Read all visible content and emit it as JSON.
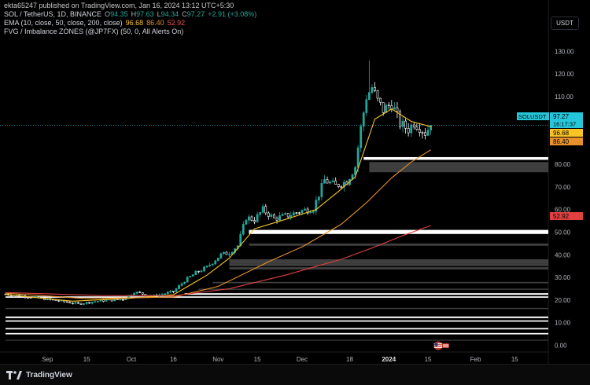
{
  "header": {
    "credit": "ekta65247 published on TradingView.com, Jan 16, 2024 13:12 UTC+5:30",
    "symbol": "SOL / TetherUS, 1D, BINANCE",
    "ohlc": {
      "o_label": "O",
      "o": "94.35",
      "h_label": "H",
      "h": "97.63",
      "l_label": "L",
      "l": "94.34",
      "c_label": "C",
      "c": "97.27",
      "change": "+2.91 (+3.08%)"
    },
    "ema_label": "EMA (10, close, 50, close, 200, close)",
    "ema_values": [
      "96.68",
      "86.40",
      "52.92"
    ],
    "fvg_label": "FVG / Imbalance ZONES (@JP7FX) (50, 0, All Alerts On)"
  },
  "currency_button": "USDT",
  "price_tags": {
    "symbol": "SOLUSDT",
    "last": "97.27",
    "countdown": "16:17:37",
    "ema10": "96.68",
    "ema50": "86.40",
    "ema200": "52.92"
  },
  "colors": {
    "up": "#26a69a",
    "down": "#ffffff",
    "ema10": "#f7c325",
    "ema50": "#e8912b",
    "ema200": "#e04040",
    "last_price": "#26c6da",
    "zone_white": "#ffffff",
    "zone_gray": "#5a5a5a"
  },
  "footer": {
    "brand": "TradingView",
    "logo_icon": "tradingview-logo-icon",
    "flag_icon": "us-flag-icon"
  },
  "chart_data": {
    "type": "candlestick",
    "title": "",
    "xlabel": "",
    "ylabel": "",
    "ylim": [
      -3,
      136
    ],
    "y_ticks": [
      "0.00",
      "10.00",
      "20.00",
      "30.00",
      "40.00",
      "50.00",
      "60.00",
      "70.00",
      "80.00",
      "90.00",
      "100.00",
      "110.00",
      "120.00",
      "130.00"
    ],
    "y_tick_values": [
      0,
      10,
      20,
      30,
      40,
      50,
      60,
      70,
      80,
      90,
      100,
      110,
      120,
      130
    ],
    "x_tick_labels": [
      {
        "label": "Sep",
        "date": "2023-09-01"
      },
      {
        "label": "15",
        "date": "2023-09-15"
      },
      {
        "label": "Oct",
        "date": "2023-10-01"
      },
      {
        "label": "16",
        "date": "2023-10-16"
      },
      {
        "label": "Nov",
        "date": "2023-11-01"
      },
      {
        "label": "15",
        "date": "2023-11-15"
      },
      {
        "label": "Dec",
        "date": "2023-12-01"
      },
      {
        "label": "18",
        "date": "2023-12-18"
      },
      {
        "label": "2024",
        "date": "2024-01-01"
      },
      {
        "label": "15",
        "date": "2024-01-15"
      },
      {
        "label": "Feb",
        "date": "2024-02-01"
      },
      {
        "label": "15",
        "date": "2024-02-15"
      }
    ],
    "x_range": [
      "2023-08-17",
      "2024-02-27"
    ],
    "grid": false,
    "close_path": [
      {
        "date": "2023-08-17",
        "close": 22.6
      },
      {
        "date": "2023-08-25",
        "close": 21.5
      },
      {
        "date": "2023-09-05",
        "close": 19.6
      },
      {
        "date": "2023-09-12",
        "close": 18.3
      },
      {
        "date": "2023-09-20",
        "close": 19.7
      },
      {
        "date": "2023-09-28",
        "close": 20.3
      },
      {
        "date": "2023-10-02",
        "close": 23.5
      },
      {
        "date": "2023-10-09",
        "close": 21.7
      },
      {
        "date": "2023-10-16",
        "close": 23.7
      },
      {
        "date": "2023-10-20",
        "close": 28.5
      },
      {
        "date": "2023-10-24",
        "close": 32.0
      },
      {
        "date": "2023-10-28",
        "close": 34.5
      },
      {
        "date": "2023-11-02",
        "close": 40.0
      },
      {
        "date": "2023-11-05",
        "close": 41.0
      },
      {
        "date": "2023-11-08",
        "close": 44.0
      },
      {
        "date": "2023-11-11",
        "close": 56.5
      },
      {
        "date": "2023-11-14",
        "close": 55.5
      },
      {
        "date": "2023-11-17",
        "close": 60.0
      },
      {
        "date": "2023-11-21",
        "close": 56.0
      },
      {
        "date": "2023-11-26",
        "close": 57.5
      },
      {
        "date": "2023-12-01",
        "close": 59.5
      },
      {
        "date": "2023-12-05",
        "close": 60.5
      },
      {
        "date": "2023-12-09",
        "close": 73.0
      },
      {
        "date": "2023-12-13",
        "close": 70.5
      },
      {
        "date": "2023-12-17",
        "close": 72.5
      },
      {
        "date": "2023-12-20",
        "close": 79.0
      },
      {
        "date": "2023-12-22",
        "close": 96.0
      },
      {
        "date": "2023-12-24",
        "close": 110.0
      },
      {
        "date": "2023-12-26",
        "close": 114.0
      },
      {
        "date": "2023-12-28",
        "close": 108.0
      },
      {
        "date": "2023-12-30",
        "close": 104.0
      },
      {
        "date": "2024-01-02",
        "close": 107.0
      },
      {
        "date": "2024-01-05",
        "close": 98.0
      },
      {
        "date": "2024-01-08",
        "close": 95.5
      },
      {
        "date": "2024-01-10",
        "close": 98.5
      },
      {
        "date": "2024-01-12",
        "close": 96.5
      },
      {
        "date": "2024-01-14",
        "close": 94.0
      },
      {
        "date": "2024-01-16",
        "close": 97.27
      }
    ],
    "peak": {
      "date": "2023-12-25",
      "high": 126.0
    },
    "ema_series": [
      {
        "name": "EMA 10",
        "color": "#f7c325",
        "points": [
          {
            "date": "2023-08-17",
            "v": 22.4
          },
          {
            "date": "2023-09-10",
            "v": 19.5
          },
          {
            "date": "2023-10-01",
            "v": 20.8
          },
          {
            "date": "2023-10-16",
            "v": 22.3
          },
          {
            "date": "2023-10-28",
            "v": 31.0
          },
          {
            "date": "2023-11-05",
            "v": 38.5
          },
          {
            "date": "2023-11-14",
            "v": 51.5
          },
          {
            "date": "2023-11-26",
            "v": 56.0
          },
          {
            "date": "2023-12-06",
            "v": 60.0
          },
          {
            "date": "2023-12-14",
            "v": 68.0
          },
          {
            "date": "2023-12-20",
            "v": 74.5
          },
          {
            "date": "2023-12-27",
            "v": 100.0
          },
          {
            "date": "2024-01-02",
            "v": 104.5
          },
          {
            "date": "2024-01-09",
            "v": 99.0
          },
          {
            "date": "2024-01-16",
            "v": 96.68
          }
        ]
      },
      {
        "name": "EMA 50",
        "color": "#e8912b",
        "points": [
          {
            "date": "2023-08-17",
            "v": 23.0
          },
          {
            "date": "2023-09-15",
            "v": 20.6
          },
          {
            "date": "2023-10-16",
            "v": 21.3
          },
          {
            "date": "2023-11-01",
            "v": 26.0
          },
          {
            "date": "2023-11-20",
            "v": 37.5
          },
          {
            "date": "2023-12-01",
            "v": 43.5
          },
          {
            "date": "2023-12-15",
            "v": 53.5
          },
          {
            "date": "2023-12-24",
            "v": 63.0
          },
          {
            "date": "2024-01-02",
            "v": 74.0
          },
          {
            "date": "2024-01-09",
            "v": 81.0
          },
          {
            "date": "2024-01-16",
            "v": 86.4
          }
        ]
      },
      {
        "name": "EMA 200",
        "color": "#e04040",
        "points": [
          {
            "date": "2023-08-17",
            "v": 23.3
          },
          {
            "date": "2023-09-20",
            "v": 22.0
          },
          {
            "date": "2023-10-16",
            "v": 21.8
          },
          {
            "date": "2023-11-05",
            "v": 25.0
          },
          {
            "date": "2023-11-25",
            "v": 31.0
          },
          {
            "date": "2023-12-15",
            "v": 38.0
          },
          {
            "date": "2023-12-26",
            "v": 43.0
          },
          {
            "date": "2024-01-06",
            "v": 48.5
          },
          {
            "date": "2024-01-16",
            "v": 52.92
          }
        ]
      }
    ],
    "zones": [
      {
        "kind": "white",
        "top": 83.2,
        "bottom": 82.0,
        "from": "2023-12-23"
      },
      {
        "kind": "gray",
        "top": 81.0,
        "bottom": 78.0,
        "from": "2023-12-25"
      },
      {
        "kind": "gray",
        "top": 78.0,
        "bottom": 76.5,
        "from": "2023-12-25"
      },
      {
        "kind": "white",
        "top": 51.0,
        "bottom": 49.2,
        "from": "2023-11-12"
      },
      {
        "kind": "gray",
        "top": 45.0,
        "bottom": 44.0,
        "from": "2023-11-12"
      },
      {
        "kind": "gray",
        "top": 38.0,
        "bottom": 36.0,
        "from": "2023-11-05"
      },
      {
        "kind": "gray",
        "top": 36.0,
        "bottom": 35.0,
        "from": "2023-11-05"
      },
      {
        "kind": "gray",
        "top": 34.5,
        "bottom": 33.5,
        "from": "2023-11-05"
      },
      {
        "kind": "gray",
        "top": 28.0,
        "bottom": 27.4,
        "from": "2023-10-30"
      },
      {
        "kind": "gray",
        "top": 25.0,
        "bottom": 24.5,
        "from": "2023-10-25"
      },
      {
        "kind": "white",
        "top": 23.0,
        "bottom": 22.3,
        "from": "2023-10-20"
      },
      {
        "kind": "white",
        "top": 21.6,
        "bottom": 21.0,
        "from": "2023-08-17"
      },
      {
        "kind": "white",
        "top": 12.7,
        "bottom": 12.0,
        "from": "2023-08-17"
      },
      {
        "kind": "white",
        "top": 11.0,
        "bottom": 10.4,
        "from": "2023-08-17"
      },
      {
        "kind": "white",
        "top": 7.6,
        "bottom": 7.0,
        "from": "2023-08-17"
      },
      {
        "kind": "white",
        "top": 5.4,
        "bottom": 4.8,
        "from": "2023-08-17"
      },
      {
        "kind": "gray",
        "top": 16.5,
        "bottom": 16.0,
        "from": "2023-08-17"
      },
      {
        "kind": "gray",
        "top": 2.4,
        "bottom": 2.0,
        "from": "2023-08-17"
      }
    ]
  }
}
